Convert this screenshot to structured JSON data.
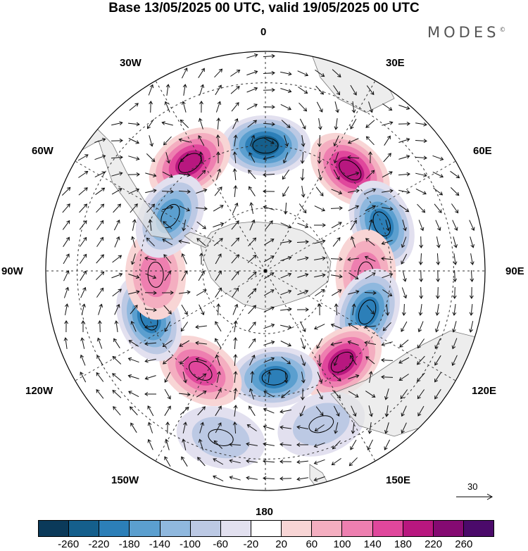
{
  "title": "Base 13/05/2025 00 UTC, valid 19/05/2025 00 UTC",
  "logo": "MODES",
  "logo_mark": "©",
  "map": {
    "projection": "south-polar-stereographic",
    "longitude_labels": {
      "lon_0": "0",
      "lon_30e": "30E",
      "lon_60e": "60E",
      "lon_90e": "90E",
      "lon_120e": "120E",
      "lon_150e": "150E",
      "lon_180": "180",
      "lon_150w": "150W",
      "lon_120w": "120W",
      "lon_90w": "90W",
      "lon_60w": "60W",
      "lon_30w": "30W"
    },
    "reference_vector_label": "30",
    "anomaly_centers": [
      {
        "sign": "negative",
        "magnitude": 240,
        "lon": 0,
        "lat": -50
      },
      {
        "sign": "positive",
        "magnitude": 200,
        "lon": -35,
        "lat": -48
      },
      {
        "sign": "positive",
        "magnitude": 180,
        "lon": 40,
        "lat": -48
      },
      {
        "sign": "negative",
        "magnitude": 180,
        "lon": 68,
        "lat": -50
      },
      {
        "sign": "positive",
        "magnitude": 100,
        "lon": 92,
        "lat": -58
      },
      {
        "sign": "negative",
        "magnitude": 200,
        "lon": 112,
        "lat": -55
      },
      {
        "sign": "positive",
        "magnitude": 180,
        "lon": 140,
        "lat": -52
      },
      {
        "sign": "negative",
        "magnitude": 200,
        "lon": 175,
        "lat": -56
      },
      {
        "sign": "positive",
        "magnitude": 160,
        "lon": -147,
        "lat": -52
      },
      {
        "sign": "negative",
        "magnitude": 200,
        "lon": -112,
        "lat": -50
      },
      {
        "sign": "positive",
        "magnitude": 120,
        "lon": -92,
        "lat": -55
      },
      {
        "sign": "negative",
        "magnitude": 140,
        "lon": -60,
        "lat": -55
      },
      {
        "sign": "negative",
        "magnitude": 80,
        "lon": 160,
        "lat": -38
      },
      {
        "sign": "negative",
        "magnitude": 60,
        "lon": -165,
        "lat": -35
      }
    ]
  },
  "colorbar": {
    "colors": [
      "#0b3a5a",
      "#155f8c",
      "#2c7fb8",
      "#5b9fcf",
      "#8fb8de",
      "#bcc9e4",
      "#e2e0ef",
      "#ffffff",
      "#f8d5d5",
      "#f4aec0",
      "#ee7fb0",
      "#e0479c",
      "#b8177f",
      "#850a72",
      "#4b0a6a"
    ],
    "tick_labels": [
      "-260",
      "-220",
      "-180",
      "-140",
      "-100",
      "-60",
      "-20",
      "20",
      "60",
      "100",
      "140",
      "180",
      "220",
      "260"
    ]
  }
}
